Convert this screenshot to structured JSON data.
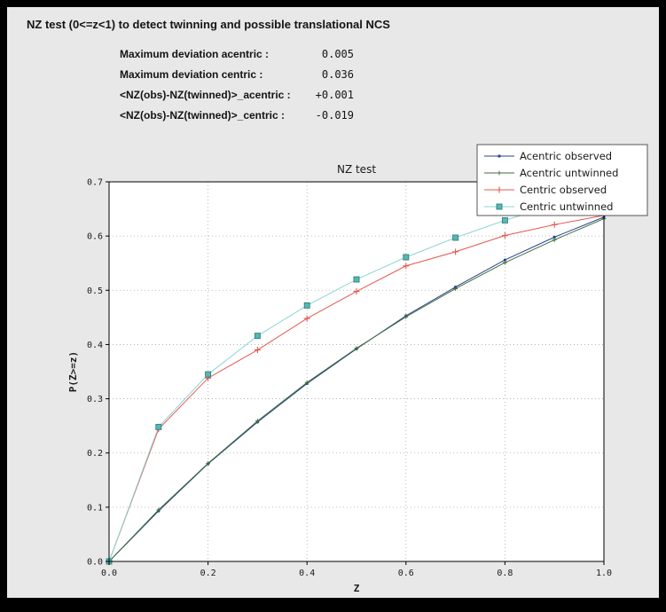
{
  "window": {
    "frame_color": "#000000",
    "panel_color": "#e8e8e8"
  },
  "header": {
    "title": "NZ test (0<=z<1) to detect twinning and possible translational NCS"
  },
  "stats": [
    {
      "label": "Maximum deviation acentric :",
      "value": "0.005"
    },
    {
      "label": "Maximum deviation centric :",
      "value": "0.036"
    },
    {
      "label": "<NZ(obs)-NZ(twinned)>_acentric :",
      "value": "+0.001"
    },
    {
      "label": "<NZ(obs)-NZ(twinned)>_centric :",
      "value": "-0.019"
    }
  ],
  "chart_data": {
    "type": "line",
    "title": "NZ test",
    "xlabel": "Z",
    "ylabel": "P(Z>=z)",
    "xlim": [
      0.0,
      1.0
    ],
    "ylim": [
      0.0,
      0.7
    ],
    "xticks": [
      0.0,
      0.2,
      0.4,
      0.6,
      0.8,
      1.0
    ],
    "yticks": [
      0.0,
      0.1,
      0.2,
      0.3,
      0.4,
      0.5,
      0.6,
      0.7
    ],
    "grid": true,
    "grid_style": "dotted",
    "plot_bg": "#ffffff",
    "legend_position": "upper right",
    "x": [
      0.0,
      0.1,
      0.2,
      0.3,
      0.4,
      0.5,
      0.6,
      0.7,
      0.8,
      0.9,
      1.0
    ],
    "series": [
      {
        "name": "Acentric observed",
        "color": "#27418b",
        "marker": "dot",
        "values": [
          0.0,
          0.093,
          0.18,
          0.257,
          0.328,
          0.392,
          0.453,
          0.506,
          0.556,
          0.598,
          0.635
        ]
      },
      {
        "name": "Acentric untwinned",
        "color": "#3f6f3a",
        "marker": "plus-small",
        "values": [
          0.0,
          0.095,
          0.181,
          0.259,
          0.33,
          0.393,
          0.451,
          0.503,
          0.551,
          0.593,
          0.632
        ]
      },
      {
        "name": "Centric observed",
        "color": "#e4574e",
        "marker": "plus",
        "values": [
          0.0,
          0.244,
          0.338,
          0.39,
          0.448,
          0.498,
          0.545,
          0.571,
          0.601,
          0.621,
          0.638
        ]
      },
      {
        "name": "Centric untwinned",
        "color": "#8cd6d4",
        "marker": "square",
        "marker_fill": "#57b7b3",
        "marker_edge": "#2e7f7c",
        "values": [
          0.0,
          0.248,
          0.345,
          0.416,
          0.472,
          0.52,
          0.561,
          0.597,
          0.629,
          0.657,
          0.683
        ]
      }
    ]
  }
}
